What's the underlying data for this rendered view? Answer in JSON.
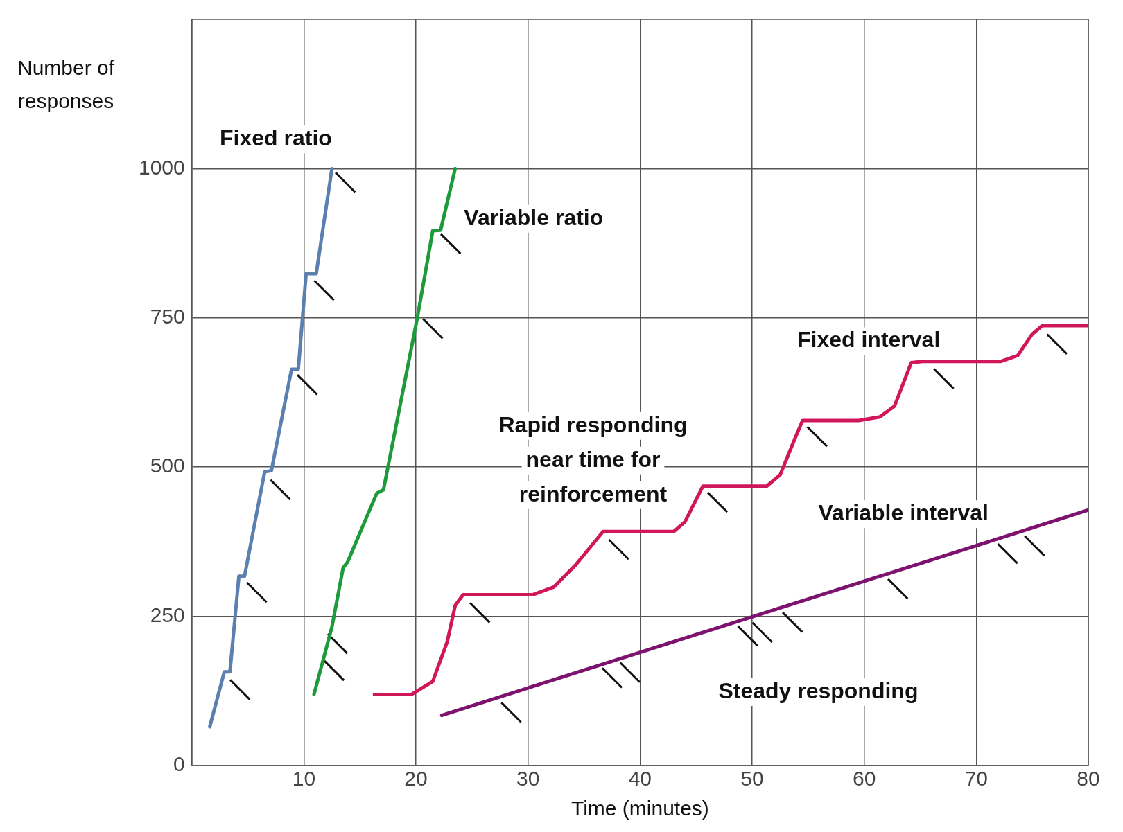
{
  "chart_data": {
    "type": "line",
    "xlabel": "Time (minutes)",
    "ylabel": "Number of\nresponses",
    "xlim": [
      0,
      80
    ],
    "xticks": [
      10,
      20,
      30,
      40,
      50,
      60,
      70,
      80
    ],
    "ylim": [
      0,
      1250
    ],
    "yticks": [
      0,
      250,
      500,
      750,
      1000
    ],
    "grid": true,
    "legend": false,
    "marker": "none",
    "line_style": "solid",
    "series": [
      {
        "name": "Fixed ratio",
        "color": "#5b7fae",
        "x": [
          1.6,
          2.9,
          3.4,
          4.2,
          4.7,
          6.5,
          7.1,
          8.9,
          9.5,
          10.2,
          11.1,
          12.5
        ],
        "values": [
          65,
          157,
          157,
          317,
          317,
          492,
          494,
          664,
          664,
          824,
          824,
          1000
        ]
      },
      {
        "name": "Variable ratio",
        "color": "#1f9a3a",
        "x": [
          10.9,
          12.5,
          13.5,
          13.9,
          16.5,
          17.1,
          20.1,
          21.5,
          22.2,
          23.5
        ],
        "values": [
          119,
          232,
          331,
          341,
          456,
          462,
          748,
          896,
          897,
          1000
        ]
      },
      {
        "name": "Fixed interval",
        "color": "#d0175a",
        "x": [
          16.3,
          19.6,
          21.5,
          22.8,
          23.5,
          24.2,
          26.6,
          30.4,
          32.3,
          34.2,
          36.7,
          39.2,
          43,
          44,
          45.6,
          46.2,
          51.3,
          52.5,
          53.8,
          54.5,
          59.5,
          61.4,
          62.7,
          64.2,
          65.2,
          72.2,
          73.7,
          75,
          75.9,
          80
        ],
        "values": [
          119,
          119,
          141,
          208,
          268,
          286,
          286,
          286,
          299,
          335,
          392,
          392,
          392,
          408,
          468,
          468,
          468,
          487,
          547,
          578,
          578,
          584,
          602,
          675,
          677,
          677,
          687,
          723,
          737,
          737
        ]
      },
      {
        "name": "Variable interval",
        "color": "#7d136e",
        "x": [
          22.3,
          80
        ],
        "values": [
          84,
          428
        ]
      },
      {
        "type": "scatter",
        "color": "#111111",
        "marker": "cross",
        "x": [
          4.3,
          5.8,
          7.9,
          10.3,
          11.8,
          13.7,
          12.7,
          13.0,
          23.1,
          21.5,
          25.7,
          38.1,
          46.9,
          55.8,
          67.1,
          77.2,
          28.5,
          37.5,
          39.1,
          49.6,
          50.9,
          53.6,
          63,
          72.8,
          75.2
        ],
        "values": [
          127,
          290,
          462,
          638,
          796,
          977,
          159,
          204,
          874,
          732,
          256,
          362,
          441,
          551,
          648,
          706,
          89,
          147,
          156,
          217,
          223,
          240,
          296,
          355,
          368
        ]
      }
    ],
    "annotations": [
      "Rapid responding\nnear time for\nreinforcement",
      "Steady responding"
    ]
  }
}
